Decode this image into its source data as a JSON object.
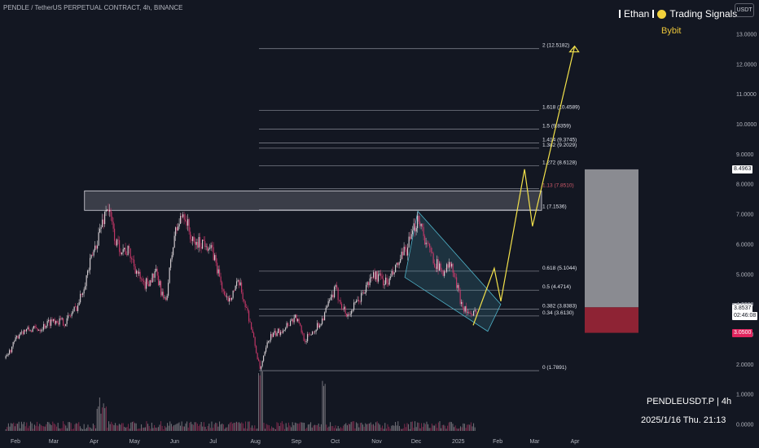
{
  "header": {
    "title": "PENDLE / TetherUS PERPETUAL CONTRACT, 4h, BINANCE"
  },
  "brand": {
    "name": "Ethan",
    "suffix": "Trading Signals",
    "exchange": "Bybit"
  },
  "footer": {
    "symbol": "PENDLEUSDT.P | 4h",
    "timestamp": "2025/1/16 Thu. 21:13"
  },
  "colors": {
    "background": "#131722",
    "candle_up": "#e8e0e4",
    "candle_down": "#d43a6e",
    "fib": "#787b86",
    "projection": "#f2e14b",
    "channel": "#4fb3c9",
    "target_box": "#8a8b91",
    "stop_box": "#8e2334"
  },
  "icons": {
    "brand_bar": "vertical-bar-icon",
    "brand_coin": "yellow-circle-icon"
  },
  "chart_data": {
    "type": "candlestick",
    "title": "PENDLE / TetherUS PERPETUAL CONTRACT, 4h, BINANCE",
    "y_unit": "USDT",
    "ylim": [
      0,
      13.5
    ],
    "y_ticks": [
      "13.0000",
      "12.0000",
      "11.0000",
      "10.0000",
      "9.0000",
      "8.0000",
      "7.0000",
      "6.0000",
      "5.0000",
      "4.0000",
      "3.0000",
      "2.0000",
      "1.0000",
      "0.0000"
    ],
    "x_ticks": [
      "Feb",
      "Mar",
      "Apr",
      "May",
      "Jun",
      "Jul",
      "Aug",
      "Sep",
      "Oct",
      "Nov",
      "Dec",
      "2025",
      "Feb",
      "Mar",
      "Apr"
    ],
    "price_path": [
      {
        "date": "2024-01-25",
        "close": 2.2
      },
      {
        "date": "2024-02-05",
        "close": 3.1
      },
      {
        "date": "2024-02-20",
        "close": 3.2
      },
      {
        "date": "2024-03-01",
        "close": 3.5
      },
      {
        "date": "2024-03-10",
        "close": 3.4
      },
      {
        "date": "2024-03-20",
        "close": 4.0
      },
      {
        "date": "2024-04-01",
        "close": 5.8
      },
      {
        "date": "2024-04-11",
        "close": 7.3
      },
      {
        "date": "2024-04-18",
        "close": 6.0
      },
      {
        "date": "2024-04-28",
        "close": 5.7
      },
      {
        "date": "2024-05-08",
        "close": 4.6
      },
      {
        "date": "2024-05-18",
        "close": 5.0
      },
      {
        "date": "2024-05-25",
        "close": 4.0
      },
      {
        "date": "2024-06-01",
        "close": 6.3
      },
      {
        "date": "2024-06-08",
        "close": 7.1
      },
      {
        "date": "2024-06-15",
        "close": 6.0
      },
      {
        "date": "2024-06-25",
        "close": 6.1
      },
      {
        "date": "2024-07-01",
        "close": 5.6
      },
      {
        "date": "2024-07-10",
        "close": 4.1
      },
      {
        "date": "2024-07-20",
        "close": 4.7
      },
      {
        "date": "2024-07-28",
        "close": 3.5
      },
      {
        "date": "2024-08-05",
        "close": 1.8
      },
      {
        "date": "2024-08-12",
        "close": 2.9
      },
      {
        "date": "2024-08-20",
        "close": 3.1
      },
      {
        "date": "2024-09-01",
        "close": 3.6
      },
      {
        "date": "2024-09-08",
        "close": 2.8
      },
      {
        "date": "2024-09-20",
        "close": 3.4
      },
      {
        "date": "2024-10-01",
        "close": 4.5
      },
      {
        "date": "2024-10-10",
        "close": 3.6
      },
      {
        "date": "2024-10-20",
        "close": 4.2
      },
      {
        "date": "2024-10-30",
        "close": 5.0
      },
      {
        "date": "2024-11-10",
        "close": 4.7
      },
      {
        "date": "2024-11-20",
        "close": 5.5
      },
      {
        "date": "2024-11-28",
        "close": 6.2
      },
      {
        "date": "2024-12-03",
        "close": 7.0
      },
      {
        "date": "2024-12-10",
        "close": 5.9
      },
      {
        "date": "2024-12-20",
        "close": 5.1
      },
      {
        "date": "2024-12-28",
        "close": 5.3
      },
      {
        "date": "2025-01-05",
        "close": 4.0
      },
      {
        "date": "2025-01-13",
        "close": 3.55
      },
      {
        "date": "2025-01-16",
        "close": 3.85
      }
    ],
    "fib_levels": [
      {
        "label": "2 (12.5182)",
        "value": 12.5182
      },
      {
        "label": "1.618 (10.4589)",
        "value": 10.4589
      },
      {
        "label": "1.5 (9.8359)",
        "value": 9.8359
      },
      {
        "label": "1.414 (9.3745)",
        "value": 9.3745
      },
      {
        "label": "1.382 (9.2029)",
        "value": 9.2029
      },
      {
        "label": "1.272 (8.6128)",
        "value": 8.6128
      },
      {
        "label": "1.13 (7.8510)",
        "value": 7.851
      },
      {
        "label": "1 (7.1536)",
        "value": 7.1536
      },
      {
        "label": "0.618 (5.1044)",
        "value": 5.1044
      },
      {
        "label": "0.5 (4.4714)",
        "value": 4.4714
      },
      {
        "label": "0.382 (3.8383)",
        "value": 3.8383
      },
      {
        "label": "0.34 (3.6130)",
        "value": 3.613
      },
      {
        "label": "0 (1.7891)",
        "value": 1.7891
      }
    ],
    "price_tags": [
      {
        "label": "8.4963",
        "value": 8.4963,
        "style": "light"
      },
      {
        "label": "3.9000",
        "value": 3.9,
        "style": "gray"
      },
      {
        "label": "3.8537",
        "value": 3.8537,
        "style": "light"
      },
      {
        "label": "02:46:08",
        "value": 3.62,
        "style": "light"
      },
      {
        "label": "3.0500",
        "value": 3.05,
        "style": "red"
      }
    ],
    "resistance_zone": {
      "low": 7.13,
      "high": 7.78,
      "from": "2024-03-25",
      "to": "2025-03-01"
    },
    "falling_channel": {
      "from": "2024-12-03",
      "to": "2025-01-30"
    },
    "projection_path": [
      {
        "date": "2025-01-14",
        "value": 3.3
      },
      {
        "date": "2025-01-30",
        "value": 5.2
      },
      {
        "date": "2025-02-04",
        "value": 4.1
      },
      {
        "date": "2025-02-22",
        "value": 8.5
      },
      {
        "date": "2025-02-28",
        "value": 6.6
      },
      {
        "date": "2025-04-01",
        "value": 12.6
      }
    ],
    "target_box": {
      "low": 3.9,
      "high": 8.4963
    },
    "stop_box": {
      "low": 3.05,
      "high": 3.9
    },
    "volume": "bars along bottom, spikes near Apr and Aug 2024",
    "grid": false
  }
}
